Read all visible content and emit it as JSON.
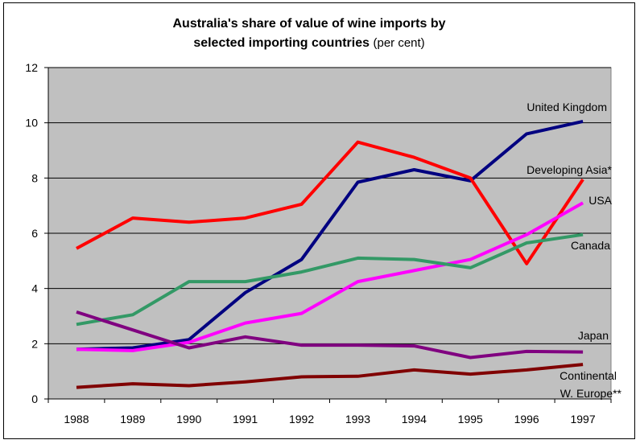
{
  "chart_data": {
    "type": "line",
    "title_line1": "Australia's share of value of wine imports by",
    "title_line2": "selected importing countries",
    "title_unit": "(per cent)",
    "x": [
      "1988",
      "1989",
      "1990",
      "1991",
      "1992",
      "1993",
      "1994",
      "1995",
      "1996",
      "1997"
    ],
    "ylim": [
      0,
      12
    ],
    "yticks": [
      "0",
      "2",
      "4",
      "6",
      "8",
      "10",
      "12"
    ],
    "grid": true,
    "plot_background": "#c0c0c0",
    "series": [
      {
        "name": "United Kingdom",
        "color": "#000080",
        "values": [
          1.8,
          1.85,
          2.15,
          3.85,
          5.05,
          7.85,
          8.3,
          7.9,
          9.6,
          10.05
        ]
      },
      {
        "name": "Developing Asia*",
        "color": "#ff0000",
        "values": [
          5.45,
          6.55,
          6.4,
          6.55,
          7.05,
          9.3,
          8.75,
          8.0,
          4.9,
          7.95
        ]
      },
      {
        "name": "USA",
        "color": "#ff00ff",
        "values": [
          1.8,
          1.75,
          2.05,
          2.75,
          3.1,
          4.25,
          4.65,
          5.05,
          5.95,
          7.1
        ]
      },
      {
        "name": "Canada",
        "color": "#339966",
        "values": [
          2.7,
          3.05,
          4.25,
          4.25,
          4.6,
          5.1,
          5.05,
          4.75,
          5.65,
          5.95
        ]
      },
      {
        "name": "Japan",
        "color": "#800080",
        "values": [
          3.15,
          2.5,
          1.85,
          2.25,
          1.95,
          1.95,
          1.92,
          1.5,
          1.72,
          1.7
        ]
      },
      {
        "name_line1": "Continental",
        "name_line2": "W. Europe**",
        "color": "#800000",
        "values": [
          0.42,
          0.55,
          0.48,
          0.62,
          0.8,
          0.82,
          1.05,
          0.9,
          1.05,
          1.25
        ]
      }
    ]
  }
}
